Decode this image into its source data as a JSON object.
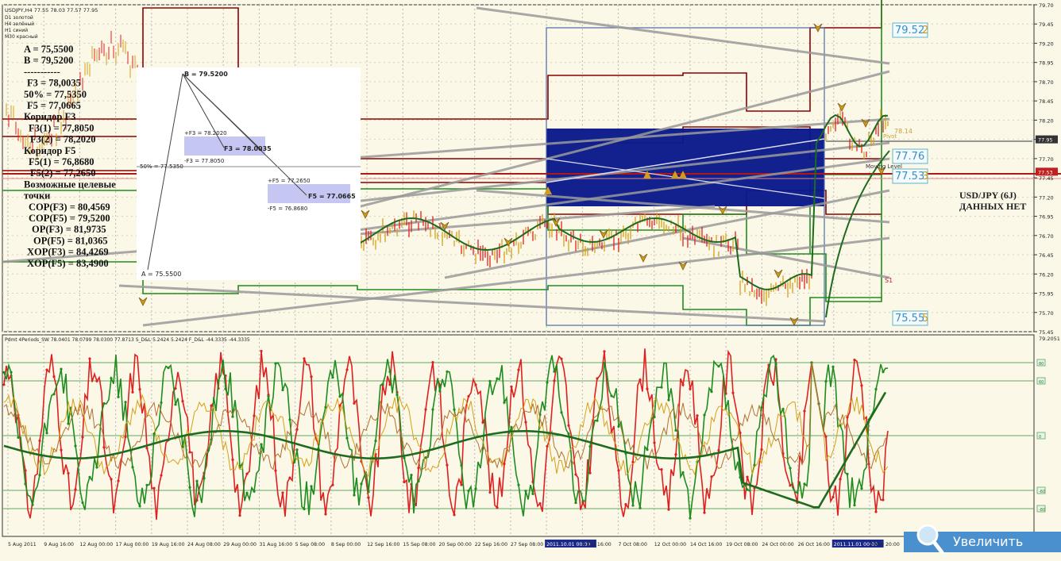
{
  "header": {
    "symbol_line": "USDJPY,H4  77.55 78.03 77.57 77.95",
    "legend": [
      "D1 золотой",
      "H4 зелёный",
      "H1 синий",
      "M30 красный"
    ]
  },
  "left_notes": [
    "A = 75,5500",
    "B = 79,5200",
    "-----------",
    "F3 = 78,0035",
    "50% = 77,5350",
    "F5 = 77,0665",
    "Коридор F3",
    "F3(1) = 77,8050",
    "F3(2) = 78,2020",
    "Коридор F5",
    "F5(1) = 76,8680",
    "F5(2) = 77,2650",
    "Возможные целевые",
    "точки",
    "COP(F3) = 80,4569",
    "COP(F5) = 79,5200",
    "OP(F3) = 81,9735",
    "OP(F5) = 81,0365",
    "XOP(F3) = 84,4269",
    "XOP(F5) = 83,4900"
  ],
  "inset": {
    "b_label": "B = 79.5200",
    "a_label": "A = 75.5500",
    "f3p_label": "+F3 = 78.2020",
    "f3_label": "F3 = 78.0035",
    "f3m_label": "-F3 = 77.8050",
    "half_label": "50% = 77.5350",
    "f5p_label": "+F5 = 77.2650",
    "f5_label": "F5 = 77.0665",
    "f5m_label": "-F5 = 76.8680"
  },
  "right_notes": {
    "l1": "USD/JPY (6J)",
    "l2": "ДАННЫХ НЕТ"
  },
  "price_boxes": [
    "79.52",
    "77.76",
    "77.53",
    "75.55"
  ],
  "price_box_suffix": [
    "2",
    "",
    "3",
    "5"
  ],
  "small_labels": [
    "78.14",
    "Pivot",
    "Moving Level",
    "S1"
  ],
  "price_axis": {
    "ticks": [
      "79.70",
      "79.45",
      "79.20",
      "78.95",
      "78.70",
      "78.45",
      "78.20",
      "77.95",
      "77.70",
      "77.45",
      "77.20",
      "76.95",
      "76.70",
      "76.45",
      "76.20",
      "75.95",
      "75.70",
      "75.45"
    ],
    "current": "77.95",
    "current_color": "#333333",
    "level": "77.53",
    "level_color": "#c02020",
    "min": 75.45,
    "max": 79.7
  },
  "oscillator": {
    "label": "Pdmt 4Periods_SW 78.0401 78.0799 78.0300 77.8713  S_D&L 5.2424 5.2424  F_D&L -44.3335 -44.3335",
    "top_value": "79.2051",
    "levels": [
      "80",
      "60",
      "0",
      "-60",
      "-80"
    ]
  },
  "time_axis": {
    "labels": [
      "5 Aug 2011",
      "9 Aug 16:00",
      "12 Aug 00:00",
      "17 Aug 00:00",
      "19 Aug 16:00",
      "24 Aug 08:00",
      "29 Aug 00:00",
      "31 Aug 16:00",
      "5 Sep 08:00",
      "8 Sep 00:00",
      "12 Sep 16:00",
      "15 Sep 08:00",
      "20 Sep 00:00",
      "22 Sep 16:00",
      "27 Sep 08:00",
      "2011.10.01 00:00",
      "4 Oct 16:00",
      "7 Oct 08:00",
      "12 Oct 00:00",
      "14 Oct 16:00",
      "19 Oct 08:00",
      "24 Oct 00:00",
      "26 Oct 16:00",
      "2011.11.01 00:00",
      "2 Nov 20:00"
    ],
    "highlighted": [
      "2011.10.01 00:00",
      "2011.11.01 00:00"
    ]
  },
  "zoom_button": {
    "label": "Увеличить"
  },
  "colors": {
    "background": "#fbf8e8",
    "rect_fill": "#0a1a8a",
    "green": "#1e8c1e",
    "red": "#e02020",
    "darkred": "#8b0000",
    "gold": "#d4a017",
    "trend": "#9a9a9a",
    "box_border": "#5fb3c8",
    "button": "#4a8fce"
  },
  "chart_data": {
    "type": "line",
    "price_range": [
      75.45,
      79.7
    ],
    "levels": {
      "A": 75.55,
      "B": 79.52,
      "F3": 78.0035,
      "half": 77.535,
      "F5": 77.0665,
      "F3_1": 77.805,
      "F3_2": 78.202,
      "F5_1": 76.868,
      "F5_2": 77.265
    },
    "oscillator_levels": [
      80,
      60,
      0,
      -60,
      -80
    ]
  }
}
